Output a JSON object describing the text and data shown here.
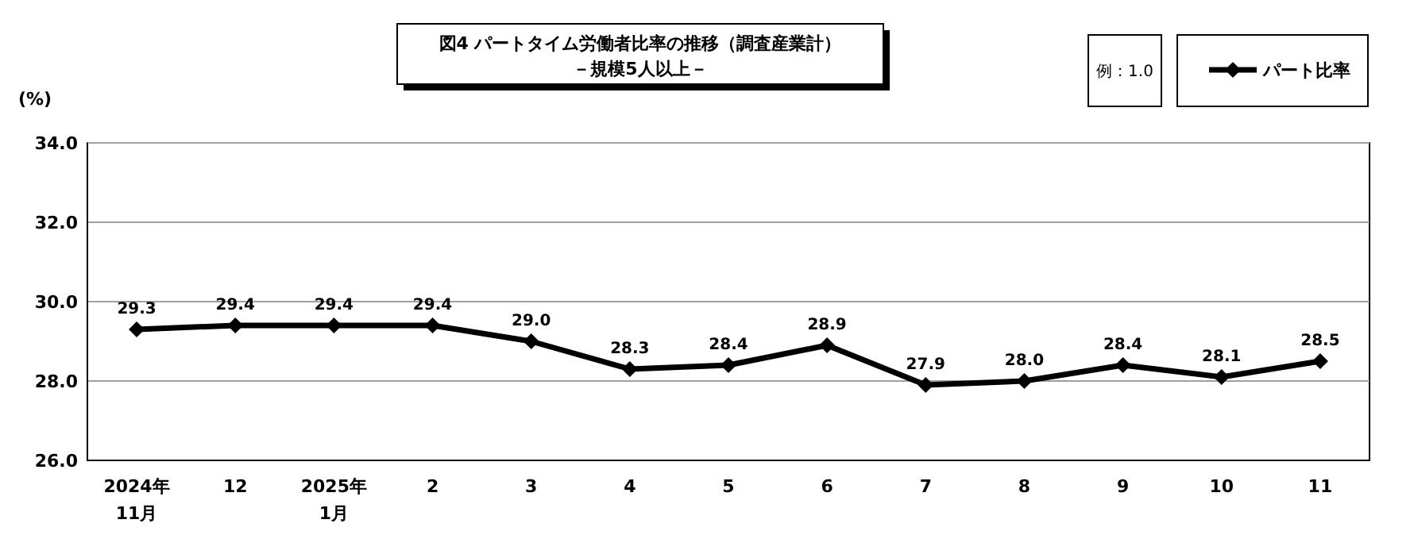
{
  "chart_data": {
    "type": "line",
    "title": "図4 パートタイム労働者比率の推移（調査産業計）",
    "subtitle": "－規模5人以上－",
    "ylabel": "(%)",
    "annotations": [
      "例：1.0"
    ],
    "categories": [
      "2024年\n11月",
      "12",
      "2025年\n1月",
      "2",
      "3",
      "4",
      "5",
      "6",
      "7",
      "8",
      "9",
      "10",
      "11"
    ],
    "series": [
      {
        "name": "パート比率",
        "color": "#000000",
        "values": [
          29.3,
          29.4,
          29.4,
          29.4,
          29.0,
          28.3,
          28.4,
          28.9,
          27.9,
          28.0,
          28.4,
          28.1,
          28.5
        ],
        "value_labels": [
          "29.3",
          "29.4",
          "29.4",
          "29.4",
          "29.0",
          "28.3",
          "28.4",
          "28.9",
          "27.9",
          "28.0",
          "28.4",
          "28.1",
          "28.5"
        ]
      }
    ],
    "ylim": [
      26,
      34
    ],
    "yticks": [
      {
        "value": 26,
        "label": "26.0"
      },
      {
        "value": 28,
        "label": "28.0"
      },
      {
        "value": 30,
        "label": "30.0"
      },
      {
        "value": 32,
        "label": "32.0"
      },
      {
        "value": 34,
        "label": "34.0"
      }
    ],
    "grid": "y",
    "legend": "top right",
    "marker": "diamond",
    "line_style": "solid"
  }
}
